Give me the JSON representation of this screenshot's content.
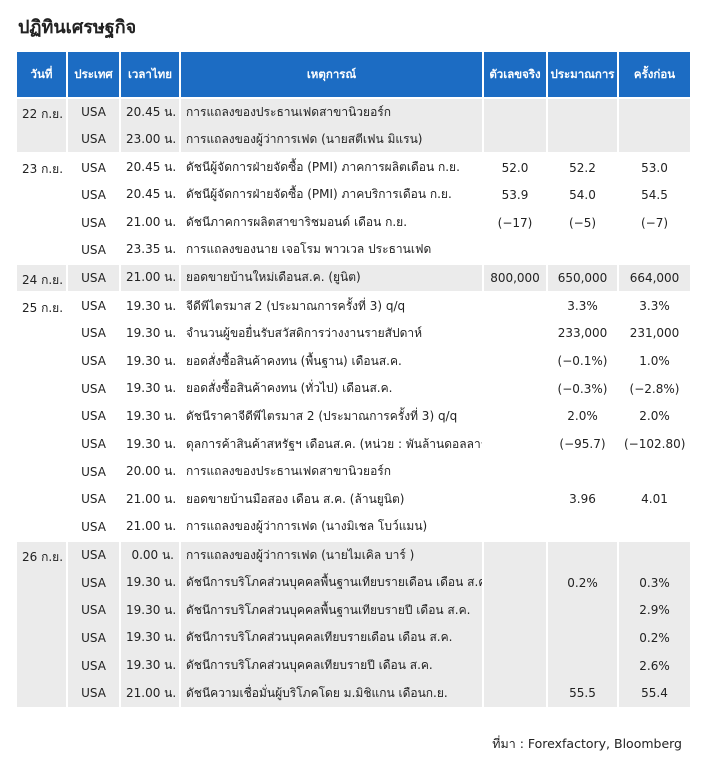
{
  "title": "ปฏิทินเศรษฐกิจ",
  "table": {
    "headers": [
      "วันที่",
      "ประเทศ",
      "เวลาไทย",
      "เหตุการณ์",
      "ตัวเลขจริง",
      "ประมาณการ",
      "ครั้งก่อน"
    ],
    "groups": [
      {
        "date": "22 ก.ย.",
        "rows": [
          [
            "USA",
            "20.45 น.",
            "การแถลงของประธานเฟดสาขานิวยอร์ก",
            null,
            null,
            null
          ],
          [
            "USA",
            "23.00 น.",
            "การแถลงของผู้ว่าการเฟด (นายสตีเฟน มิแรน)",
            null,
            null,
            null
          ]
        ]
      },
      {
        "date": "23 ก.ย.",
        "rows": [
          [
            "USA",
            "20.45 น.",
            "ดัชนีผู้จัดการฝ่ายจัดซื้อ (PMI) ภาคการผลิตเดือน ก.ย.",
            "52.0",
            "52.2",
            "53.0"
          ],
          [
            "USA",
            "20.45 น.",
            "ดัชนีผู้จัดการฝ่ายจัดซื้อ (PMI) ภาคบริการเดือน ก.ย.",
            "53.9",
            "54.0",
            "54.5"
          ],
          [
            "USA",
            "21.00 น.",
            "ดัชนีภาคการผลิตสาขาริชมอนด์ เดือน ก.ย.",
            "(−17)",
            "(−5)",
            "(−7)"
          ],
          [
            "USA",
            "23.35 น.",
            "การแถลงของนาย เจอโรม พาวเวล ประธานเฟด",
            null,
            null,
            null
          ]
        ]
      },
      {
        "date": "24 ก.ย.",
        "rows": [
          [
            "USA",
            "21.00 น.",
            "ยอดขายบ้านใหม่เดือนส.ค. (ยูนิต)",
            "800,000",
            "650,000",
            "664,000"
          ]
        ]
      },
      {
        "date": "25 ก.ย.",
        "rows": [
          [
            "USA",
            "19.30 น.",
            "จีดีพีไตรมาส 2 (ประมาณการครั้งที่ 3) q/q",
            null,
            "3.3%",
            "3.3%"
          ],
          [
            "USA",
            "19.30 น.",
            "จำนวนผู้ขอยื่นรับสวัสดิการว่างงานรายสัปดาห์",
            null,
            "233,000",
            "231,000"
          ],
          [
            "USA",
            "19.30 น.",
            "ยอดสั่งซื้อสินค้าคงทน (พื้นฐาน) เดือนส.ค.",
            null,
            "(−0.1%)",
            "1.0%"
          ],
          [
            "USA",
            "19.30 น.",
            "ยอดสั่งซื้อสินค้าคงทน (ทั่วไป) เดือนส.ค.",
            null,
            "(−0.3%)",
            "(−2.8%)"
          ],
          [
            "USA",
            "19.30 น.",
            "ดัชนีราคาจีดีพีไตรมาส 2 (ประมาณการครั้งที่ 3) q/q",
            null,
            "2.0%",
            "2.0%"
          ],
          [
            "USA",
            "19.30 น.",
            "ดุลการค้าสินค้าสหรัฐฯ เดือนส.ค. (หน่วย : พันล้านดอลลาร์)",
            null,
            "(−95.7)",
            "(−102.80)"
          ],
          [
            "USA",
            "20.00 น.",
            "การแถลงของประธานเฟดสาขานิวยอร์ก",
            null,
            null,
            null
          ],
          [
            "USA",
            "21.00 น.",
            "ยอดขายบ้านมือสอง เดือน ส.ค. (ล้านยูนิต)",
            null,
            "3.96",
            "4.01"
          ],
          [
            "USA",
            "21.00 น.",
            "การแถลงของผู้ว่าการเฟด (นางมิเชล โบว์แมน)",
            null,
            null,
            null
          ]
        ]
      },
      {
        "date": "26 ก.ย.",
        "rows": [
          [
            "USA",
            "0.00 น.",
            "การแถลงของผู้ว่าการเฟด (นายไมเคิล บาร์ )",
            null,
            null,
            null
          ],
          [
            "USA",
            "19.30 น.",
            "ดัชนีการบริโภคส่วนบุคคลพื้นฐานเทียบรายเดือน เดือน ส.ค.",
            null,
            "0.2%",
            "0.3%"
          ],
          [
            "USA",
            "19.30 น.",
            "ดัชนีการบริโภคส่วนบุคคลพื้นฐานเทียบรายปี เดือน ส.ค.",
            null,
            null,
            "2.9%"
          ],
          [
            "USA",
            "19.30 น.",
            "ดัชนีการบริโภคส่วนบุคคลเทียบรายเดือน เดือน ส.ค.",
            null,
            null,
            "0.2%"
          ],
          [
            "USA",
            "19.30 น.",
            "ดัชนีการบริโภคส่วนบุคคลเทียบรายปี เดือน ส.ค.",
            null,
            null,
            "2.6%"
          ],
          [
            "USA",
            "21.00 น.",
            "ดัชนีความเชื่อมั่นผู้บริโภคโดย ม.มิชิแกน เดือนก.ย.",
            null,
            "55.5",
            "55.4"
          ]
        ]
      }
    ]
  },
  "source": "ที่มา : Forexfactory, Bloomberg"
}
